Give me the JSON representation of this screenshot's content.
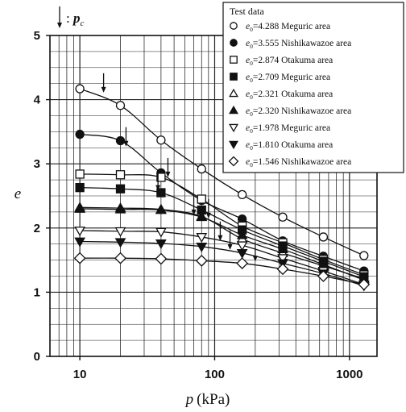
{
  "chart_data": {
    "type": "line",
    "xlabel_var": "p",
    "xlabel_unit": "(kPa)",
    "ylabel": "e",
    "x_scale": "log",
    "xlim": [
      6,
      1600
    ],
    "ylim": [
      0,
      5
    ],
    "x_ticks": [
      10,
      100,
      1000
    ],
    "x_tick_labels": [
      "10",
      "100",
      "1000"
    ],
    "y_ticks": [
      0,
      1,
      2,
      3,
      4,
      5
    ],
    "y_tick_labels": [
      "0",
      "1",
      "2",
      "3",
      "4",
      "5"
    ],
    "grid": true,
    "legend_placement": "top-right",
    "legend_title": "Test data",
    "annotation": {
      "label": "p",
      "subscript": "c",
      "prefix": ":"
    },
    "series": [
      {
        "e0": "4.288",
        "area": "Meguric area",
        "marker": "open-circle",
        "x": [
          10,
          20,
          40,
          80,
          160,
          320,
          640,
          1280
        ],
        "y": [
          4.17,
          3.91,
          3.37,
          2.92,
          2.52,
          2.17,
          1.86,
          1.57
        ],
        "pc": {
          "x": 15,
          "y": 4.11
        }
      },
      {
        "e0": "3.555",
        "area": "Nishikawazoe area",
        "marker": "filled-circle",
        "x": [
          10,
          20,
          40,
          80,
          160,
          320,
          640,
          1280
        ],
        "y": [
          3.46,
          3.36,
          2.86,
          2.43,
          2.14,
          1.8,
          1.56,
          1.33
        ],
        "pc": {
          "x": 22,
          "y": 3.27
        }
      },
      {
        "e0": "2.874",
        "area": "Otakuma area",
        "marker": "open-square",
        "x": [
          10,
          20,
          40,
          80,
          160,
          320,
          640,
          1280
        ],
        "y": [
          2.84,
          2.83,
          2.79,
          2.45,
          2.03,
          1.77,
          1.51,
          1.27
        ],
        "pc": {
          "x": 45,
          "y": 2.79
        }
      },
      {
        "e0": "2.709",
        "area": "Meguric area",
        "marker": "filled-square",
        "x": [
          10,
          20,
          40,
          80,
          160,
          320,
          640,
          1280
        ],
        "y": [
          2.63,
          2.61,
          2.55,
          2.28,
          1.97,
          1.72,
          1.48,
          1.24
        ],
        "pc": {
          "x": 38,
          "y": 2.58
        }
      },
      {
        "e0": "2.321",
        "area": "Otakuma area",
        "marker": "open-triangle-up",
        "x": [
          10,
          20,
          40,
          80,
          160,
          320,
          640,
          1280
        ],
        "y": [
          2.32,
          2.31,
          2.29,
          2.18,
          1.83,
          1.61,
          1.41,
          1.21
        ],
        "pc": {
          "x": 90,
          "y": 2.15
        }
      },
      {
        "e0": "2.320",
        "area": "Nishikawazoe area",
        "marker": "filled-triangle-up",
        "x": [
          10,
          20,
          40,
          80,
          160,
          320,
          640,
          1280
        ],
        "y": [
          2.3,
          2.29,
          2.28,
          2.17,
          1.89,
          1.67,
          1.43,
          1.19
        ],
        "pc": {
          "x": 70,
          "y": 2.2
        }
      },
      {
        "e0": "1.978",
        "area": "Meguric area",
        "marker": "open-triangle-down",
        "x": [
          10,
          20,
          40,
          80,
          160,
          320,
          640,
          1280
        ],
        "y": [
          1.96,
          1.95,
          1.94,
          1.86,
          1.73,
          1.53,
          1.33,
          1.12
        ],
        "pc": {
          "x": 110,
          "y": 1.8
        }
      },
      {
        "e0": "1.810",
        "area": "Otakuma area",
        "marker": "filled-triangle-down",
        "x": [
          10,
          20,
          40,
          80,
          160,
          320,
          640,
          1280
        ],
        "y": [
          1.79,
          1.78,
          1.76,
          1.71,
          1.61,
          1.45,
          1.29,
          1.1
        ],
        "pc": {
          "x": 130,
          "y": 1.66
        }
      },
      {
        "e0": "1.546",
        "area": "Nishikawazoe area",
        "marker": "open-diamond",
        "x": [
          10,
          20,
          40,
          80,
          160,
          320,
          640,
          1280
        ],
        "y": [
          1.53,
          1.53,
          1.52,
          1.49,
          1.45,
          1.36,
          1.25,
          1.12
        ],
        "pc": {
          "x": 200,
          "y": 1.48
        }
      }
    ]
  }
}
